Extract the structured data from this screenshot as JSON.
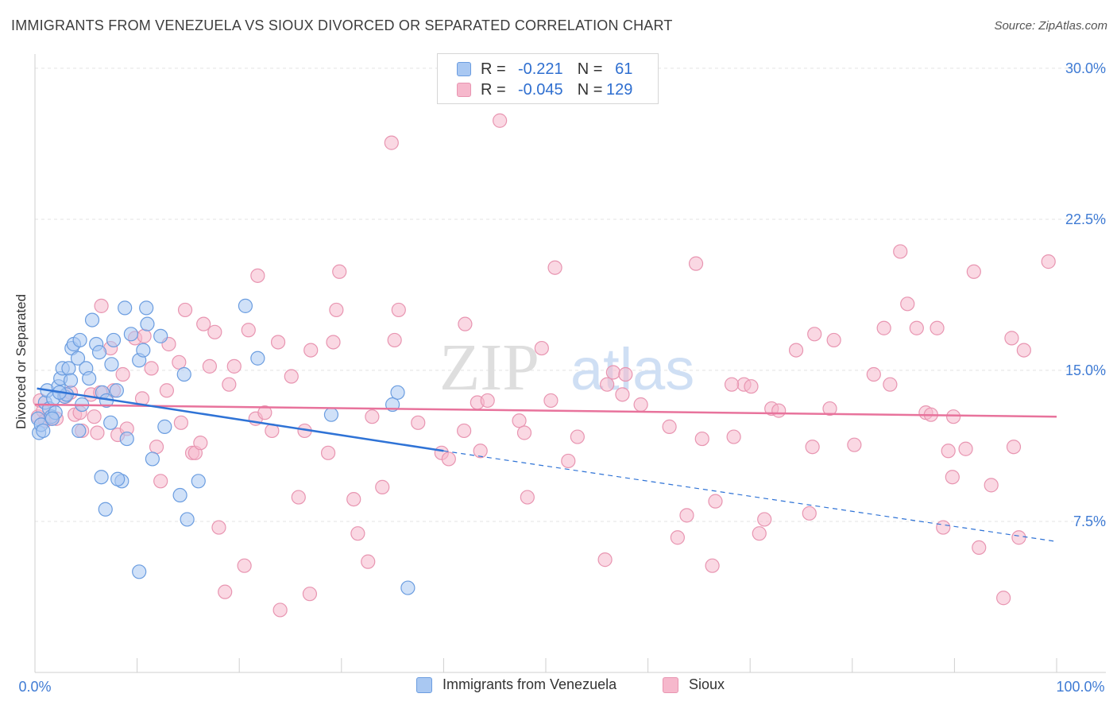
{
  "title": "IMMIGRANTS FROM VENEZUELA VS SIOUX DIVORCED OR SEPARATED CORRELATION CHART",
  "source": "Source: ZipAtlas.com",
  "watermark": {
    "bold": "ZIP",
    "light": "atlas"
  },
  "colors": {
    "blue_fill": "#a9c8f2",
    "blue_stroke": "#6b9de0",
    "blue_line": "#2f73d6",
    "pink_fill": "#f6b8cc",
    "pink_stroke": "#e895b1",
    "pink_line": "#e8739c",
    "axis_value": "#3f7bd4",
    "grid": "#e3e3e3"
  },
  "legend_top": {
    "rows": [
      {
        "series": "blue",
        "r_label": "R =",
        "r_value": "-0.221",
        "n_label": "N =",
        "n_value": "61"
      },
      {
        "series": "pink",
        "r_label": "R =",
        "r_value": "-0.045",
        "n_label": "N =",
        "n_value": "129"
      }
    ]
  },
  "legend_bottom": [
    "Immigrants from Venezuela",
    "Sioux"
  ],
  "chart_data": {
    "type": "scatter",
    "title": "IMMIGRANTS FROM VENEZUELA VS SIOUX DIVORCED OR SEPARATED CORRELATION CHART",
    "xlabel": "",
    "ylabel": "Divorced or Separated",
    "xlim": [
      0,
      100
    ],
    "ylim": [
      0,
      31.1
    ],
    "x_tick_labels": [
      "0.0%",
      "100.0%"
    ],
    "y_ticks": [
      7.5,
      15.0,
      22.5,
      30.0
    ],
    "y_tick_labels": [
      "7.5%",
      "15.0%",
      "22.5%",
      "30.0%"
    ],
    "grid": true,
    "legend_position": "top-center",
    "series": [
      {
        "name": "Immigrants from Venezuela",
        "color": "blue",
        "r": -0.221,
        "n": 61,
        "trend": {
          "x0": 0.2,
          "y0": 14.1,
          "x1": 40,
          "y1": 11.0,
          "dash_to_x": 100,
          "dash_to_y": 6.5
        },
        "points": [
          [
            0.3,
            12.6
          ],
          [
            0.4,
            11.9
          ],
          [
            0.6,
            12.3
          ],
          [
            0.8,
            12.0
          ],
          [
            1.0,
            13.4
          ],
          [
            1.2,
            14.0
          ],
          [
            1.4,
            13.1
          ],
          [
            1.6,
            12.7
          ],
          [
            1.8,
            13.6
          ],
          [
            2.0,
            12.9
          ],
          [
            2.3,
            14.2
          ],
          [
            2.5,
            14.6
          ],
          [
            2.7,
            15.1
          ],
          [
            2.9,
            13.7
          ],
          [
            3.1,
            13.8
          ],
          [
            3.3,
            15.1
          ],
          [
            3.5,
            14.5
          ],
          [
            3.6,
            16.1
          ],
          [
            3.8,
            16.3
          ],
          [
            4.2,
            15.6
          ],
          [
            4.4,
            16.5
          ],
          [
            4.6,
            13.3
          ],
          [
            5.0,
            15.1
          ],
          [
            5.3,
            14.6
          ],
          [
            5.6,
            17.5
          ],
          [
            6.0,
            16.3
          ],
          [
            6.3,
            15.9
          ],
          [
            6.6,
            13.9
          ],
          [
            7.0,
            13.5
          ],
          [
            7.4,
            12.4
          ],
          [
            7.5,
            15.3
          ],
          [
            7.7,
            16.5
          ],
          [
            8.0,
            14.0
          ],
          [
            8.5,
            9.5
          ],
          [
            8.8,
            18.1
          ],
          [
            9.0,
            11.6
          ],
          [
            9.4,
            16.8
          ],
          [
            10.2,
            15.5
          ],
          [
            10.6,
            16.0
          ],
          [
            10.9,
            18.1
          ],
          [
            11.0,
            17.3
          ],
          [
            11.5,
            10.6
          ],
          [
            12.3,
            16.7
          ],
          [
            14.2,
            8.8
          ],
          [
            14.6,
            14.8
          ],
          [
            14.9,
            7.6
          ],
          [
            16.0,
            9.5
          ],
          [
            20.6,
            18.2
          ],
          [
            21.8,
            15.6
          ],
          [
            29.0,
            12.8
          ],
          [
            35.0,
            13.3
          ],
          [
            35.5,
            13.9
          ],
          [
            36.5,
            4.2
          ],
          [
            6.5,
            9.7
          ],
          [
            6.9,
            8.1
          ],
          [
            8.1,
            9.6
          ],
          [
            10.2,
            5.0
          ],
          [
            12.7,
            12.2
          ],
          [
            1.7,
            12.6
          ],
          [
            4.3,
            12.0
          ],
          [
            2.4,
            13.9
          ]
        ]
      },
      {
        "name": "Sioux",
        "color": "pink",
        "r": -0.045,
        "n": 129,
        "trend": {
          "x0": 0,
          "y0": 13.3,
          "x1": 100,
          "y1": 12.7
        },
        "points": [
          [
            0.3,
            12.7
          ],
          [
            0.5,
            13.5
          ],
          [
            0.8,
            13.0
          ],
          [
            1.0,
            12.5
          ],
          [
            1.6,
            12.6
          ],
          [
            2.1,
            12.6
          ],
          [
            3.0,
            13.7
          ],
          [
            3.5,
            13.9
          ],
          [
            3.9,
            12.8
          ],
          [
            4.4,
            12.9
          ],
          [
            4.6,
            12.0
          ],
          [
            5.5,
            13.8
          ],
          [
            5.8,
            12.7
          ],
          [
            6.1,
            11.9
          ],
          [
            6.4,
            13.9
          ],
          [
            6.5,
            18.2
          ],
          [
            7.4,
            16.1
          ],
          [
            7.7,
            14.0
          ],
          [
            8.1,
            11.8
          ],
          [
            8.6,
            14.8
          ],
          [
            9.0,
            12.1
          ],
          [
            9.8,
            16.6
          ],
          [
            10.5,
            13.6
          ],
          [
            10.7,
            16.7
          ],
          [
            11.4,
            15.1
          ],
          [
            11.9,
            11.2
          ],
          [
            12.3,
            9.5
          ],
          [
            12.9,
            14.0
          ],
          [
            13.1,
            16.3
          ],
          [
            14.1,
            15.4
          ],
          [
            14.3,
            12.4
          ],
          [
            14.7,
            18.0
          ],
          [
            15.4,
            10.9
          ],
          [
            15.7,
            10.9
          ],
          [
            16.2,
            11.4
          ],
          [
            16.5,
            17.3
          ],
          [
            17.1,
            15.2
          ],
          [
            17.6,
            16.9
          ],
          [
            18.0,
            7.2
          ],
          [
            18.6,
            4.0
          ],
          [
            19.0,
            14.3
          ],
          [
            19.5,
            15.2
          ],
          [
            20.5,
            5.3
          ],
          [
            20.9,
            17.0
          ],
          [
            21.6,
            12.6
          ],
          [
            21.8,
            19.7
          ],
          [
            22.5,
            12.9
          ],
          [
            23.2,
            12.0
          ],
          [
            23.8,
            16.4
          ],
          [
            24.0,
            3.1
          ],
          [
            25.1,
            14.7
          ],
          [
            25.8,
            8.7
          ],
          [
            26.4,
            12.0
          ],
          [
            26.9,
            3.9
          ],
          [
            27.0,
            16.0
          ],
          [
            28.7,
            10.9
          ],
          [
            29.2,
            16.4
          ],
          [
            29.5,
            18.0
          ],
          [
            29.8,
            19.9
          ],
          [
            31.2,
            8.6
          ],
          [
            31.6,
            6.9
          ],
          [
            32.6,
            5.5
          ],
          [
            33.0,
            12.7
          ],
          [
            34.0,
            9.2
          ],
          [
            34.9,
            26.3
          ],
          [
            35.2,
            16.5
          ],
          [
            35.6,
            18.0
          ],
          [
            39.8,
            10.9
          ],
          [
            40.5,
            10.6
          ],
          [
            42.0,
            12.0
          ],
          [
            42.1,
            17.3
          ],
          [
            43.3,
            13.4
          ],
          [
            43.6,
            11.0
          ],
          [
            45.5,
            27.4
          ],
          [
            47.4,
            12.5
          ],
          [
            47.9,
            11.9
          ],
          [
            48.2,
            8.7
          ],
          [
            49.6,
            16.1
          ],
          [
            50.5,
            13.5
          ],
          [
            50.9,
            20.1
          ],
          [
            52.2,
            10.5
          ],
          [
            53.1,
            11.7
          ],
          [
            55.8,
            5.6
          ],
          [
            56.0,
            14.3
          ],
          [
            56.6,
            14.9
          ],
          [
            57.8,
            14.8
          ],
          [
            59.3,
            13.3
          ],
          [
            62.1,
            12.2
          ],
          [
            62.9,
            6.7
          ],
          [
            63.8,
            7.8
          ],
          [
            64.7,
            20.3
          ],
          [
            65.3,
            11.6
          ],
          [
            66.3,
            5.3
          ],
          [
            66.6,
            8.5
          ],
          [
            68.4,
            11.7
          ],
          [
            69.4,
            14.3
          ],
          [
            70.1,
            14.2
          ],
          [
            70.9,
            6.9
          ],
          [
            71.4,
            7.6
          ],
          [
            72.1,
            13.1
          ],
          [
            72.8,
            13.0
          ],
          [
            74.5,
            16.0
          ],
          [
            75.8,
            7.9
          ],
          [
            76.3,
            16.8
          ],
          [
            77.8,
            13.1
          ],
          [
            78.2,
            16.5
          ],
          [
            76.1,
            11.2
          ],
          [
            80.2,
            11.3
          ],
          [
            82.1,
            14.8
          ],
          [
            83.1,
            17.1
          ],
          [
            83.7,
            14.3
          ],
          [
            84.7,
            20.9
          ],
          [
            85.4,
            18.3
          ],
          [
            86.3,
            17.1
          ],
          [
            87.2,
            12.9
          ],
          [
            87.7,
            12.8
          ],
          [
            88.3,
            17.1
          ],
          [
            88.9,
            7.2
          ],
          [
            89.4,
            11.0
          ],
          [
            89.9,
            12.7
          ],
          [
            89.8,
            9.7
          ],
          [
            91.1,
            11.1
          ],
          [
            91.9,
            19.9
          ],
          [
            92.4,
            6.2
          ],
          [
            93.6,
            9.3
          ],
          [
            94.8,
            3.7
          ],
          [
            95.6,
            16.6
          ],
          [
            95.8,
            11.2
          ],
          [
            96.3,
            6.7
          ],
          [
            96.8,
            16.0
          ],
          [
            99.2,
            20.4
          ],
          [
            44.3,
            13.5
          ],
          [
            37.5,
            12.4
          ],
          [
            57.5,
            13.8
          ],
          [
            68.2,
            14.3
          ]
        ]
      }
    ]
  }
}
